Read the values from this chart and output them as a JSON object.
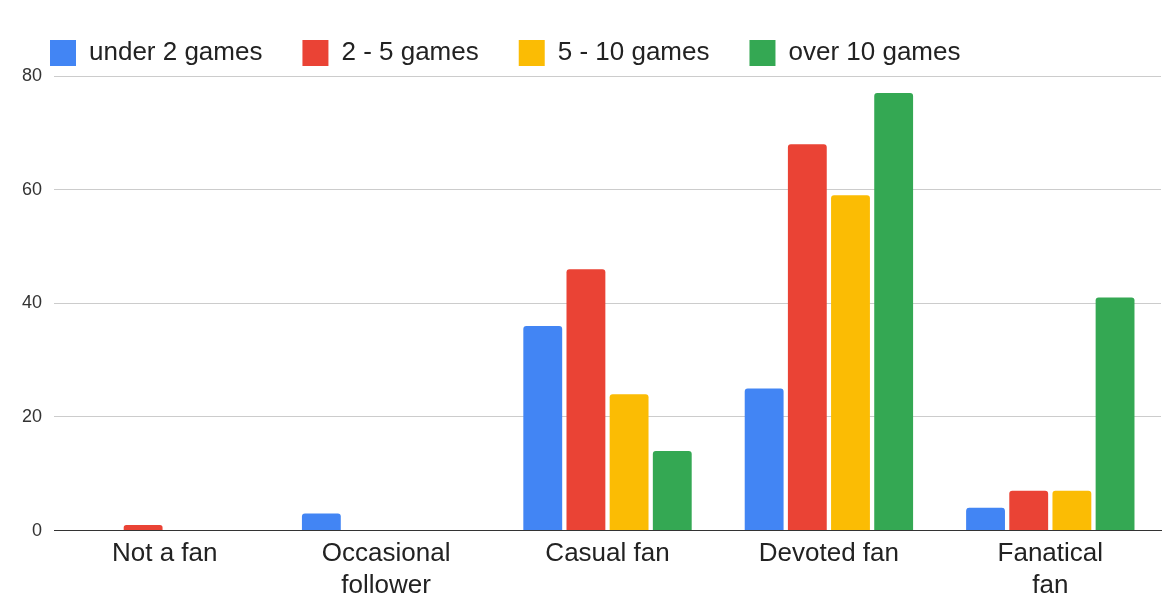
{
  "chart_data": {
    "type": "bar",
    "categories": [
      "Not a fan",
      "Occasional follower",
      "Casual fan",
      "Devoted fan",
      "Fanatical fan"
    ],
    "series": [
      {
        "name": "under 2 games",
        "color": "#4285f4",
        "values": [
          0,
          3,
          36,
          25,
          4
        ]
      },
      {
        "name": "2 - 5 games",
        "color": "#ea4335",
        "values": [
          1,
          0,
          46,
          68,
          7
        ]
      },
      {
        "name": "5 - 10 games",
        "color": "#fbbc04",
        "values": [
          0,
          0,
          24,
          59,
          7
        ]
      },
      {
        "name": "over 10 games",
        "color": "#34a853",
        "values": [
          0,
          0,
          14,
          77,
          41
        ]
      }
    ],
    "ylim": [
      0,
      80
    ],
    "yticks": [
      0,
      20,
      40,
      60,
      80
    ],
    "grid": "y",
    "legend": "top"
  }
}
